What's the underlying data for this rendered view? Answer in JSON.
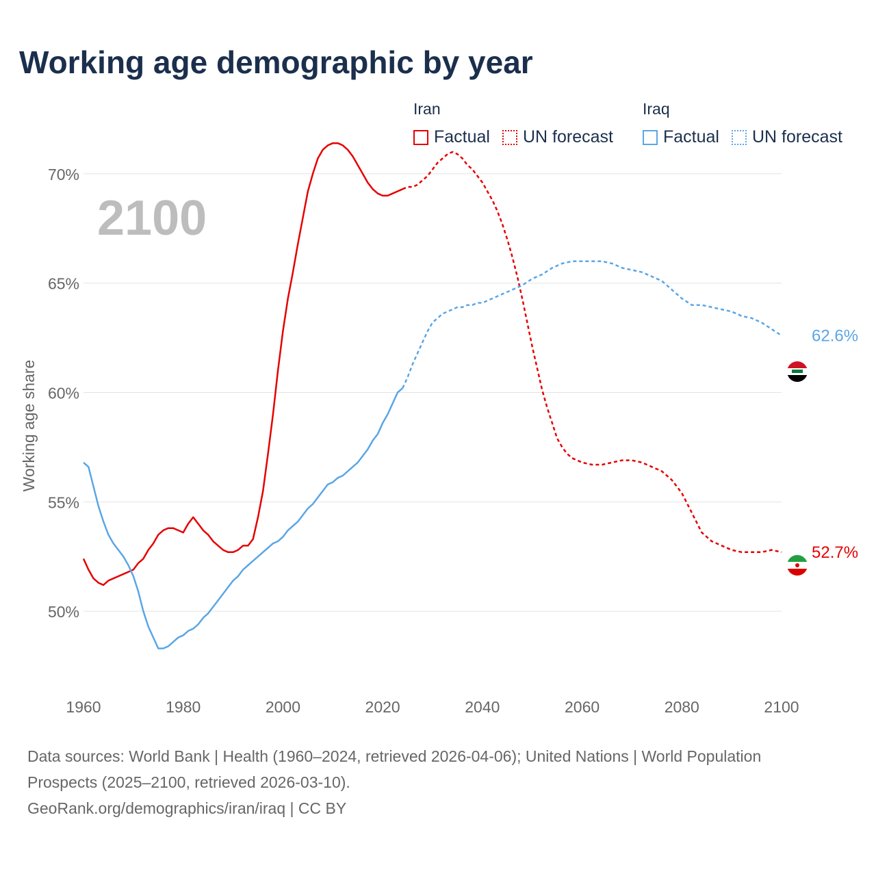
{
  "header": {
    "title": "Working age demographic by year"
  },
  "legend": {
    "groups": [
      {
        "name": "Iran",
        "color": "#e60000",
        "items": [
          {
            "label": "Factual",
            "style": "solid"
          },
          {
            "label": "UN forecast",
            "style": "dotted"
          }
        ]
      },
      {
        "name": "Iraq",
        "color": "#5aa6e6",
        "items": [
          {
            "label": "Factual",
            "style": "solid"
          },
          {
            "label": "UN forecast",
            "style": "dotted"
          }
        ]
      }
    ]
  },
  "chart_data": {
    "type": "line",
    "year_label": "2100",
    "ylabel": "Working age share",
    "xlabel": "",
    "xlim": [
      1960,
      2100
    ],
    "ylim": [
      46.5,
      72
    ],
    "x_ticks": [
      1960,
      1980,
      2000,
      2020,
      2040,
      2060,
      2080,
      2100
    ],
    "x_tick_labels": [
      "1960",
      "1980",
      "2000",
      "2020",
      "2040",
      "2060",
      "2080",
      "2100"
    ],
    "y_ticks": [
      50,
      55,
      60,
      65,
      70
    ],
    "y_tick_labels": [
      "50%",
      "55%",
      "60%",
      "65%",
      "70%"
    ],
    "grid": true,
    "series": [
      {
        "name": "Iran",
        "color": "#e60000",
        "icon": "iran-flag-icon",
        "end_label": "52.7%",
        "factual": [
          [
            1960,
            52.4
          ],
          [
            1961,
            51.9
          ],
          [
            1962,
            51.5
          ],
          [
            1963,
            51.3
          ],
          [
            1964,
            51.2
          ],
          [
            1965,
            51.4
          ],
          [
            1966,
            51.5
          ],
          [
            1967,
            51.6
          ],
          [
            1968,
            51.7
          ],
          [
            1969,
            51.8
          ],
          [
            1970,
            51.9
          ],
          [
            1971,
            52.2
          ],
          [
            1972,
            52.4
          ],
          [
            1973,
            52.8
          ],
          [
            1974,
            53.1
          ],
          [
            1975,
            53.5
          ],
          [
            1976,
            53.7
          ],
          [
            1977,
            53.8
          ],
          [
            1978,
            53.8
          ],
          [
            1979,
            53.7
          ],
          [
            1980,
            53.6
          ],
          [
            1981,
            54.0
          ],
          [
            1982,
            54.3
          ],
          [
            1983,
            54.0
          ],
          [
            1984,
            53.7
          ],
          [
            1985,
            53.5
          ],
          [
            1986,
            53.2
          ],
          [
            1987,
            53.0
          ],
          [
            1988,
            52.8
          ],
          [
            1989,
            52.7
          ],
          [
            1990,
            52.7
          ],
          [
            1991,
            52.8
          ],
          [
            1992,
            53.0
          ],
          [
            1993,
            53.0
          ],
          [
            1994,
            53.3
          ],
          [
            1995,
            54.3
          ],
          [
            1996,
            55.5
          ],
          [
            1997,
            57.2
          ],
          [
            1998,
            59.0
          ],
          [
            1999,
            61.0
          ],
          [
            2000,
            62.8
          ],
          [
            2001,
            64.3
          ],
          [
            2002,
            65.5
          ],
          [
            2003,
            66.8
          ],
          [
            2004,
            68.0
          ],
          [
            2005,
            69.2
          ],
          [
            2006,
            70.0
          ],
          [
            2007,
            70.7
          ],
          [
            2008,
            71.1
          ],
          [
            2009,
            71.3
          ],
          [
            2010,
            71.4
          ],
          [
            2011,
            71.4
          ],
          [
            2012,
            71.3
          ],
          [
            2013,
            71.1
          ],
          [
            2014,
            70.8
          ],
          [
            2015,
            70.4
          ],
          [
            2016,
            70.0
          ],
          [
            2017,
            69.6
          ],
          [
            2018,
            69.3
          ],
          [
            2019,
            69.1
          ],
          [
            2020,
            69.0
          ],
          [
            2021,
            69.0
          ],
          [
            2022,
            69.1
          ],
          [
            2023,
            69.2
          ],
          [
            2024,
            69.3
          ]
        ],
        "forecast": [
          [
            2024,
            69.3
          ],
          [
            2025,
            69.4
          ],
          [
            2026,
            69.4
          ],
          [
            2027,
            69.5
          ],
          [
            2028,
            69.7
          ],
          [
            2029,
            69.9
          ],
          [
            2030,
            70.2
          ],
          [
            2031,
            70.5
          ],
          [
            2032,
            70.7
          ],
          [
            2033,
            70.9
          ],
          [
            2034,
            71.0
          ],
          [
            2035,
            70.9
          ],
          [
            2036,
            70.7
          ],
          [
            2037,
            70.4
          ],
          [
            2038,
            70.2
          ],
          [
            2039,
            69.9
          ],
          [
            2040,
            69.6
          ],
          [
            2041,
            69.2
          ],
          [
            2042,
            68.8
          ],
          [
            2043,
            68.3
          ],
          [
            2044,
            67.7
          ],
          [
            2045,
            67.0
          ],
          [
            2046,
            66.2
          ],
          [
            2047,
            65.3
          ],
          [
            2048,
            64.3
          ],
          [
            2049,
            63.2
          ],
          [
            2050,
            62.1
          ],
          [
            2051,
            61.1
          ],
          [
            2052,
            60.1
          ],
          [
            2053,
            59.3
          ],
          [
            2054,
            58.6
          ],
          [
            2055,
            57.9
          ],
          [
            2056,
            57.5
          ],
          [
            2057,
            57.2
          ],
          [
            2058,
            57.0
          ],
          [
            2059,
            56.9
          ],
          [
            2060,
            56.8
          ],
          [
            2062,
            56.7
          ],
          [
            2064,
            56.7
          ],
          [
            2066,
            56.8
          ],
          [
            2068,
            56.9
          ],
          [
            2070,
            56.9
          ],
          [
            2072,
            56.8
          ],
          [
            2074,
            56.6
          ],
          [
            2076,
            56.4
          ],
          [
            2078,
            56.0
          ],
          [
            2080,
            55.4
          ],
          [
            2082,
            54.5
          ],
          [
            2084,
            53.6
          ],
          [
            2086,
            53.2
          ],
          [
            2088,
            53.0
          ],
          [
            2090,
            52.8
          ],
          [
            2092,
            52.7
          ],
          [
            2094,
            52.7
          ],
          [
            2096,
            52.7
          ],
          [
            2098,
            52.8
          ],
          [
            2100,
            52.7
          ]
        ]
      },
      {
        "name": "Iraq",
        "color": "#5aa6e6",
        "icon": "iraq-flag-icon",
        "end_label": "62.6%",
        "factual": [
          [
            1960,
            56.8
          ],
          [
            1961,
            56.6
          ],
          [
            1962,
            55.7
          ],
          [
            1963,
            54.8
          ],
          [
            1964,
            54.1
          ],
          [
            1965,
            53.5
          ],
          [
            1966,
            53.1
          ],
          [
            1967,
            52.8
          ],
          [
            1968,
            52.5
          ],
          [
            1969,
            52.1
          ],
          [
            1970,
            51.6
          ],
          [
            1971,
            50.9
          ],
          [
            1972,
            50.0
          ],
          [
            1973,
            49.3
          ],
          [
            1974,
            48.8
          ],
          [
            1975,
            48.3
          ],
          [
            1976,
            48.3
          ],
          [
            1977,
            48.4
          ],
          [
            1978,
            48.6
          ],
          [
            1979,
            48.8
          ],
          [
            1980,
            48.9
          ],
          [
            1981,
            49.1
          ],
          [
            1982,
            49.2
          ],
          [
            1983,
            49.4
          ],
          [
            1984,
            49.7
          ],
          [
            1985,
            49.9
          ],
          [
            1986,
            50.2
          ],
          [
            1987,
            50.5
          ],
          [
            1988,
            50.8
          ],
          [
            1989,
            51.1
          ],
          [
            1990,
            51.4
          ],
          [
            1991,
            51.6
          ],
          [
            1992,
            51.9
          ],
          [
            1993,
            52.1
          ],
          [
            1994,
            52.3
          ],
          [
            1995,
            52.5
          ],
          [
            1996,
            52.7
          ],
          [
            1997,
            52.9
          ],
          [
            1998,
            53.1
          ],
          [
            1999,
            53.2
          ],
          [
            2000,
            53.4
          ],
          [
            2001,
            53.7
          ],
          [
            2002,
            53.9
          ],
          [
            2003,
            54.1
          ],
          [
            2004,
            54.4
          ],
          [
            2005,
            54.7
          ],
          [
            2006,
            54.9
          ],
          [
            2007,
            55.2
          ],
          [
            2008,
            55.5
          ],
          [
            2009,
            55.8
          ],
          [
            2010,
            55.9
          ],
          [
            2011,
            56.1
          ],
          [
            2012,
            56.2
          ],
          [
            2013,
            56.4
          ],
          [
            2014,
            56.6
          ],
          [
            2015,
            56.8
          ],
          [
            2016,
            57.1
          ],
          [
            2017,
            57.4
          ],
          [
            2018,
            57.8
          ],
          [
            2019,
            58.1
          ],
          [
            2020,
            58.6
          ],
          [
            2021,
            59.0
          ],
          [
            2022,
            59.5
          ],
          [
            2023,
            60.0
          ],
          [
            2024,
            60.2
          ]
        ],
        "forecast": [
          [
            2024,
            60.2
          ],
          [
            2025,
            60.7
          ],
          [
            2026,
            61.3
          ],
          [
            2027,
            61.8
          ],
          [
            2028,
            62.3
          ],
          [
            2029,
            62.8
          ],
          [
            2030,
            63.2
          ],
          [
            2031,
            63.4
          ],
          [
            2032,
            63.6
          ],
          [
            2033,
            63.7
          ],
          [
            2034,
            63.8
          ],
          [
            2035,
            63.9
          ],
          [
            2036,
            63.9
          ],
          [
            2037,
            64.0
          ],
          [
            2038,
            64.0
          ],
          [
            2039,
            64.1
          ],
          [
            2040,
            64.1
          ],
          [
            2042,
            64.3
          ],
          [
            2044,
            64.5
          ],
          [
            2046,
            64.7
          ],
          [
            2048,
            64.9
          ],
          [
            2050,
            65.2
          ],
          [
            2052,
            65.4
          ],
          [
            2054,
            65.7
          ],
          [
            2056,
            65.9
          ],
          [
            2058,
            66.0
          ],
          [
            2060,
            66.0
          ],
          [
            2062,
            66.0
          ],
          [
            2064,
            66.0
          ],
          [
            2066,
            65.9
          ],
          [
            2068,
            65.7
          ],
          [
            2070,
            65.6
          ],
          [
            2072,
            65.5
          ],
          [
            2074,
            65.3
          ],
          [
            2076,
            65.1
          ],
          [
            2078,
            64.7
          ],
          [
            2080,
            64.3
          ],
          [
            2082,
            64.0
          ],
          [
            2084,
            64.0
          ],
          [
            2086,
            63.9
          ],
          [
            2088,
            63.8
          ],
          [
            2090,
            63.7
          ],
          [
            2092,
            63.5
          ],
          [
            2094,
            63.4
          ],
          [
            2096,
            63.2
          ],
          [
            2098,
            62.9
          ],
          [
            2100,
            62.6
          ]
        ]
      }
    ]
  },
  "footer": {
    "sources": "Data sources: World Bank | Health (1960–2024, retrieved 2026-04-06); United Nations | World Population Prospects (2025–2100, retrieved 2026-03-10).",
    "credit": "GeoRank.org/demographics/iran/iraq | CC BY"
  }
}
